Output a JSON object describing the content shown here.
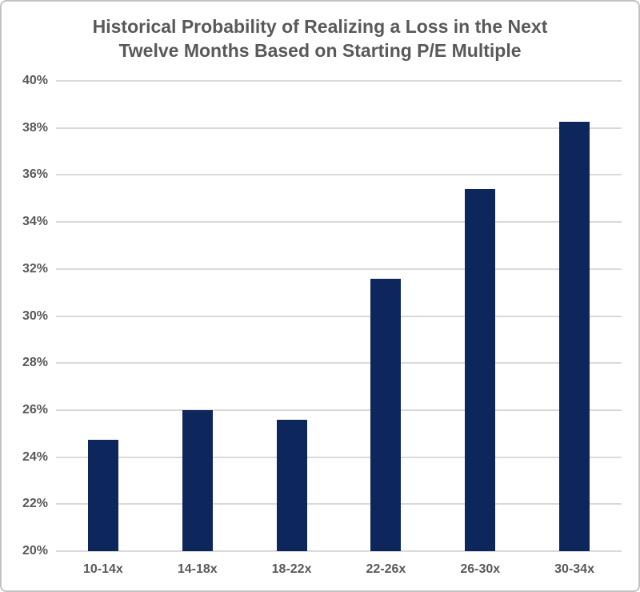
{
  "title": {
    "line1": "Historical Probability of Realizing a Loss in the Next",
    "line2": "Twelve Months Based on Starting P/E Multiple"
  },
  "chart_data": {
    "type": "bar",
    "title": "Historical Probability of Realizing a Loss in the Next Twelve Months Based on Starting P/E Multiple",
    "categories": [
      "10-14x",
      "14-18x",
      "18-22x",
      "22-26x",
      "26-30x",
      "30-34x"
    ],
    "values": [
      24.75,
      26.0,
      25.6,
      31.6,
      35.4,
      38.25
    ],
    "xlabel": "",
    "ylabel": "",
    "ylim": [
      20,
      40
    ],
    "ytick_step": 2,
    "ytick_labels": [
      "20%",
      "22%",
      "24%",
      "26%",
      "28%",
      "30%",
      "32%",
      "34%",
      "36%",
      "38%",
      "40%"
    ],
    "ytick_format": "percent",
    "grid": true,
    "legend": "none",
    "colors": {
      "bar_color": "#0d265c",
      "text_color": "#595959",
      "gridline_color": "#d9d9d9",
      "border_color": "#c2c2c2",
      "background": "#ffffff"
    }
  }
}
